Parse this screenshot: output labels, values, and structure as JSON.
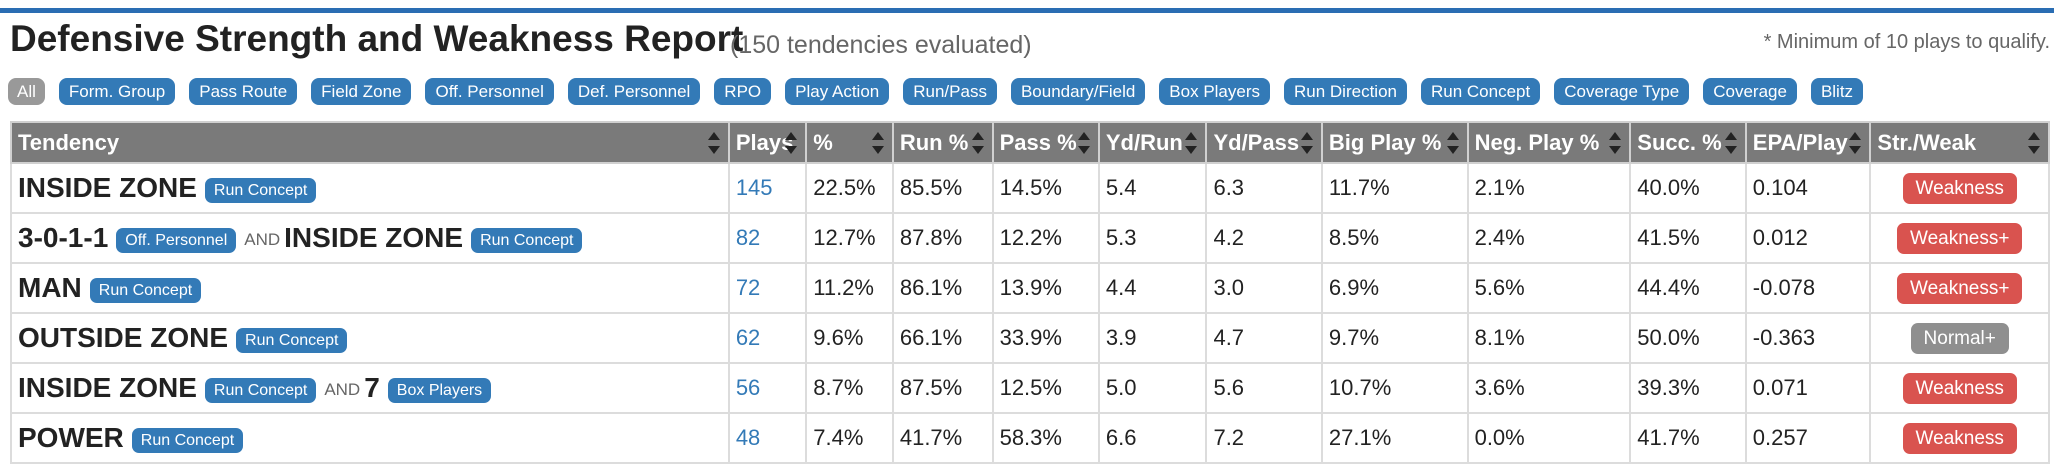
{
  "header": {
    "title": "Defensive Strength and Weakness Report",
    "subtitle": "(150 tendencies evaluated)",
    "note": "* Minimum of 10 plays to qualify."
  },
  "filters": [
    "All",
    "Form. Group",
    "Pass Route",
    "Field Zone",
    "Off. Personnel",
    "Def. Personnel",
    "RPO",
    "Play Action",
    "Run/Pass",
    "Boundary/Field",
    "Box Players",
    "Run Direction",
    "Run Concept",
    "Coverage Type",
    "Coverage",
    "Blitz"
  ],
  "columns": [
    "Tendency",
    "Plays",
    "%",
    "Run %",
    "Pass %",
    "Yd/Run",
    "Yd/Pass",
    "Big Play %",
    "Neg. Play %",
    "Succ. %",
    "EPA/Play",
    "Str./Weak"
  ],
  "connector": "AND",
  "rows": [
    {
      "parts": [
        {
          "name": "INSIDE ZONE",
          "tag": "Run Concept"
        }
      ],
      "plays": "145",
      "pct": "22.5%",
      "run_pct": "85.5%",
      "pass_pct": "14.5%",
      "yd_run": "5.4",
      "yd_pass": "6.3",
      "big_play": "11.7%",
      "neg_play": "2.1%",
      "succ": "40.0%",
      "epa": "0.104",
      "sw": "Weakness",
      "sw_color": "#d9534f"
    },
    {
      "parts": [
        {
          "name": "3-0-1-1",
          "tag": "Off. Personnel"
        },
        {
          "name": "INSIDE ZONE",
          "tag": "Run Concept"
        }
      ],
      "plays": "82",
      "pct": "12.7%",
      "run_pct": "87.8%",
      "pass_pct": "12.2%",
      "yd_run": "5.3",
      "yd_pass": "4.2",
      "big_play": "8.5%",
      "neg_play": "2.4%",
      "succ": "41.5%",
      "epa": "0.012",
      "sw": "Weakness+",
      "sw_color": "#d9534f"
    },
    {
      "parts": [
        {
          "name": "MAN",
          "tag": "Run Concept"
        }
      ],
      "plays": "72",
      "pct": "11.2%",
      "run_pct": "86.1%",
      "pass_pct": "13.9%",
      "yd_run": "4.4",
      "yd_pass": "3.0",
      "big_play": "6.9%",
      "neg_play": "5.6%",
      "succ": "44.4%",
      "epa": "-0.078",
      "sw": "Weakness+",
      "sw_color": "#d9534f"
    },
    {
      "parts": [
        {
          "name": "OUTSIDE ZONE",
          "tag": "Run Concept"
        }
      ],
      "plays": "62",
      "pct": "9.6%",
      "run_pct": "66.1%",
      "pass_pct": "33.9%",
      "yd_run": "3.9",
      "yd_pass": "4.7",
      "big_play": "9.7%",
      "neg_play": "8.1%",
      "succ": "50.0%",
      "epa": "-0.363",
      "sw": "Normal+",
      "sw_color": "#8f8f8f"
    },
    {
      "parts": [
        {
          "name": "INSIDE ZONE",
          "tag": "Run Concept"
        },
        {
          "name": "7",
          "tag": "Box Players"
        }
      ],
      "plays": "56",
      "pct": "8.7%",
      "run_pct": "87.5%",
      "pass_pct": "12.5%",
      "yd_run": "5.0",
      "yd_pass": "5.6",
      "big_play": "10.7%",
      "neg_play": "3.6%",
      "succ": "39.3%",
      "epa": "0.071",
      "sw": "Weakness",
      "sw_color": "#d9534f"
    },
    {
      "parts": [
        {
          "name": "POWER",
          "tag": "Run Concept"
        }
      ],
      "plays": "48",
      "pct": "7.4%",
      "run_pct": "41.7%",
      "pass_pct": "58.3%",
      "yd_run": "6.6",
      "yd_pass": "7.2",
      "big_play": "27.1%",
      "neg_play": "0.0%",
      "succ": "41.7%",
      "epa": "0.257",
      "sw": "Weakness",
      "sw_color": "#d9534f"
    }
  ]
}
